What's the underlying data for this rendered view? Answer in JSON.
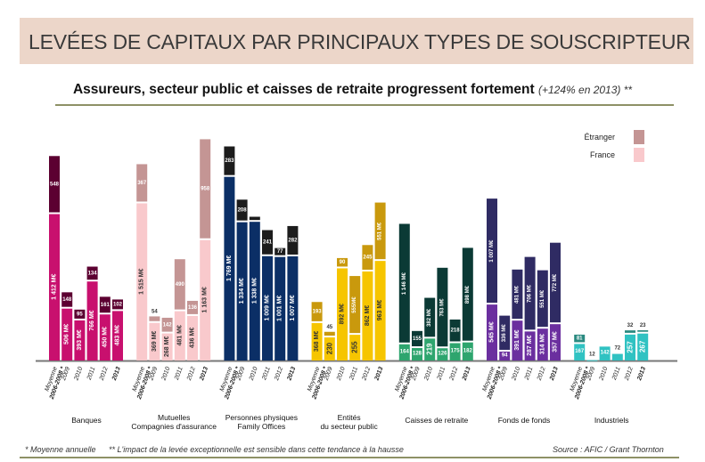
{
  "header": {
    "title": "LEVÉES DE CAPITAUX PAR PRINCIPAUX TYPES DE SOUSCRIPTEUR"
  },
  "subtitle": {
    "text": "Assureurs, secteur public et caisses de retraite progressent fortement",
    "note": "(+124% en 2013) **"
  },
  "footer": {
    "note1": "* Moyenne annuelle",
    "note2": "** L'impact de la levée exceptionnelle est sensible dans cette tendance à la hausse",
    "source": "Source : AFIC / Grant Thornton"
  },
  "chart_data": {
    "type": "bar",
    "stacked": true,
    "unit": "M€",
    "legend": {
      "position": "top-right",
      "entries": [
        "Étranger",
        "France"
      ],
      "colors": [
        "#c49594",
        "#f9c9cc"
      ]
    },
    "categories": [
      "Moyenne 2006-2008 *",
      "2009",
      "2010",
      "2011",
      "2012",
      "2013"
    ],
    "groups": [
      {
        "name": "Banques",
        "colors": {
          "france": "#c8106e",
          "etranger": "#5c0031"
        },
        "france": [
          1412,
          506,
          393,
          766,
          450,
          483
        ],
        "etranger": [
          548,
          148,
          95,
          134,
          161,
          102
        ],
        "france_labels": [
          "1 412 M€",
          "506 M€",
          "393 M€",
          "766 M€",
          "450 M€",
          "483 M€"
        ],
        "etranger_labels": [
          "548",
          "148",
          "95",
          "134",
          "161",
          "102"
        ]
      },
      {
        "name": "Mutuelles Compagnies d'assurance",
        "colors": {
          "france": "#f9c9cc",
          "etranger": "#c49594"
        },
        "france": [
          1515,
          369,
          268,
          481,
          436,
          1163
        ],
        "etranger": [
          367,
          54,
          142,
          490,
          136,
          958
        ],
        "france_labels": [
          "1 515 M€",
          "369 M€",
          "268 M€",
          "481 M€",
          "436 M€",
          "1 163 M€"
        ],
        "etranger_labels": [
          "367",
          "54",
          "142",
          "490",
          "136",
          "958"
        ]
      },
      {
        "name": "Personnes physiques Family Offices",
        "colors": {
          "france": "#0b2f66",
          "etranger": "#1c1c1c"
        },
        "france": [
          1769,
          1334,
          1338,
          1009,
          1001,
          1007
        ],
        "etranger": [
          283,
          208,
          40,
          241,
          77,
          282
        ],
        "france_labels": [
          "1 769 M€",
          "1 334 M€",
          "1 338 M€",
          "1 009 M€",
          "1 001 M€",
          "1 007 M€"
        ],
        "etranger_labels": [
          "283",
          "208",
          "",
          "241",
          "77",
          "282"
        ]
      },
      {
        "name": "Entités du secteur public",
        "colors": {
          "france": "#f6c500",
          "etranger": "#c9990d"
        },
        "france": [
          368,
          230,
          892,
          255,
          862,
          963
        ],
        "etranger": [
          193,
          45,
          90,
          555,
          245,
          551
        ],
        "france_labels": [
          "368 M€",
          "230",
          "892 M€",
          "255",
          "862 M€",
          "963 M€"
        ],
        "etranger_labels": [
          "193",
          "45",
          "90",
          "555M€",
          "245",
          "551 M€"
        ]
      },
      {
        "name": "Caisses de retraite",
        "colors": {
          "france": "#2ea56e",
          "etranger": "#0b3a35"
        },
        "france": [
          164,
          128,
          219,
          126,
          175,
          182
        ],
        "etranger": [
          1146,
          155,
          382,
          763,
          218,
          898
        ],
        "france_labels": [
          "164",
          "128",
          "219",
          "126",
          "175",
          "182"
        ],
        "etranger_labels": [
          "1 146 M€",
          "155",
          "382 M€",
          "763 M€",
          "218",
          "898 M€"
        ]
      },
      {
        "name": "Fonds de fonds",
        "colors": {
          "france": "#6b2f9f",
          "etranger": "#2f2b63"
        },
        "france": [
          545,
          94,
          391,
          287,
          314,
          357
        ],
        "etranger": [
          1007,
          336,
          481,
          706,
          551,
          772
        ],
        "france_labels": [
          "545 M€",
          "94",
          "391 M€",
          "287 M€",
          "314 M€",
          "357 M€"
        ],
        "etranger_labels": [
          "1 007 M€",
          "336 M€",
          "481 M€",
          "706 M€",
          "551 M€",
          "772 M€"
        ]
      },
      {
        "name": "Industriels",
        "colors": {
          "france": "#30c2c2",
          "etranger": "#2a8a80"
        },
        "france": [
          167,
          12,
          142,
          72,
          257,
          267
        ],
        "etranger": [
          81,
          0,
          0,
          0,
          32,
          23
        ],
        "france_labels": [
          "167",
          "12",
          "142",
          "72",
          "257",
          "267"
        ],
        "etranger_labels": [
          "81",
          "",
          "",
          "",
          "32",
          "23"
        ]
      }
    ],
    "group_label_lines": [
      [
        "Banques"
      ],
      [
        "Mutuelles",
        "Compagnies d'assurance"
      ],
      [
        "Personnes physiques",
        "Family Offices"
      ],
      [
        "Entités",
        "du secteur public"
      ],
      [
        "Caisses de retraite"
      ],
      [
        "Fonds de fonds"
      ],
      [
        "Industriels"
      ]
    ]
  }
}
